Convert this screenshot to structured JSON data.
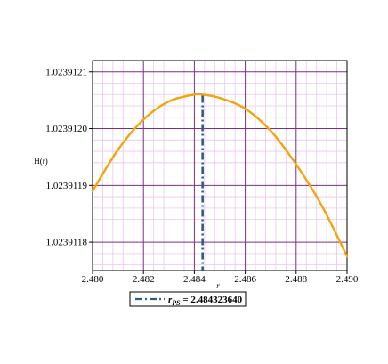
{
  "chart_data": {
    "type": "line",
    "title": "",
    "xlabel": "r",
    "ylabel": "H(r)",
    "xlim": [
      2.48,
      2.49
    ],
    "ylim": [
      1.02391175,
      1.02391212
    ],
    "x_ticks": [
      2.48,
      2.482,
      2.484,
      2.486,
      2.488,
      2.49
    ],
    "x_tick_labels": [
      "2.480",
      "2.482",
      "2.484",
      "2.486",
      "2.488",
      "2.490"
    ],
    "y_ticks": [
      1.0239118,
      1.0239119,
      1.023912,
      1.0239121
    ],
    "y_tick_labels": [
      "1.0239118",
      "1.0239119",
      "1.0239120",
      "1.0239121"
    ],
    "grid": true,
    "series": [
      {
        "name": "",
        "color": "#f5a30a",
        "style": "solid",
        "x": [
          2.48,
          2.481,
          2.482,
          2.483,
          2.484,
          2.4843,
          2.485,
          2.486,
          2.487,
          2.488,
          2.489,
          2.49
        ],
        "y": [
          1.02391189,
          1.023911963,
          1.023912016,
          1.023912048,
          1.02391206,
          1.02391206,
          1.023912054,
          1.023912035,
          1.023911996,
          1.023911937,
          1.023911865,
          1.023911775
        ]
      }
    ],
    "vline": {
      "label_main": "r",
      "label_sub": "PS",
      "label_value": " = 2.484323640",
      "x": 2.48432364,
      "color": "#2e5f78",
      "style": "dashdot"
    },
    "legend_position": "bottom-left",
    "colors": {
      "major_grid": "#7a2e86",
      "minor_grid": "#e8c8ee",
      "curve": "#f5a30a",
      "vline": "#2e5f78"
    }
  }
}
